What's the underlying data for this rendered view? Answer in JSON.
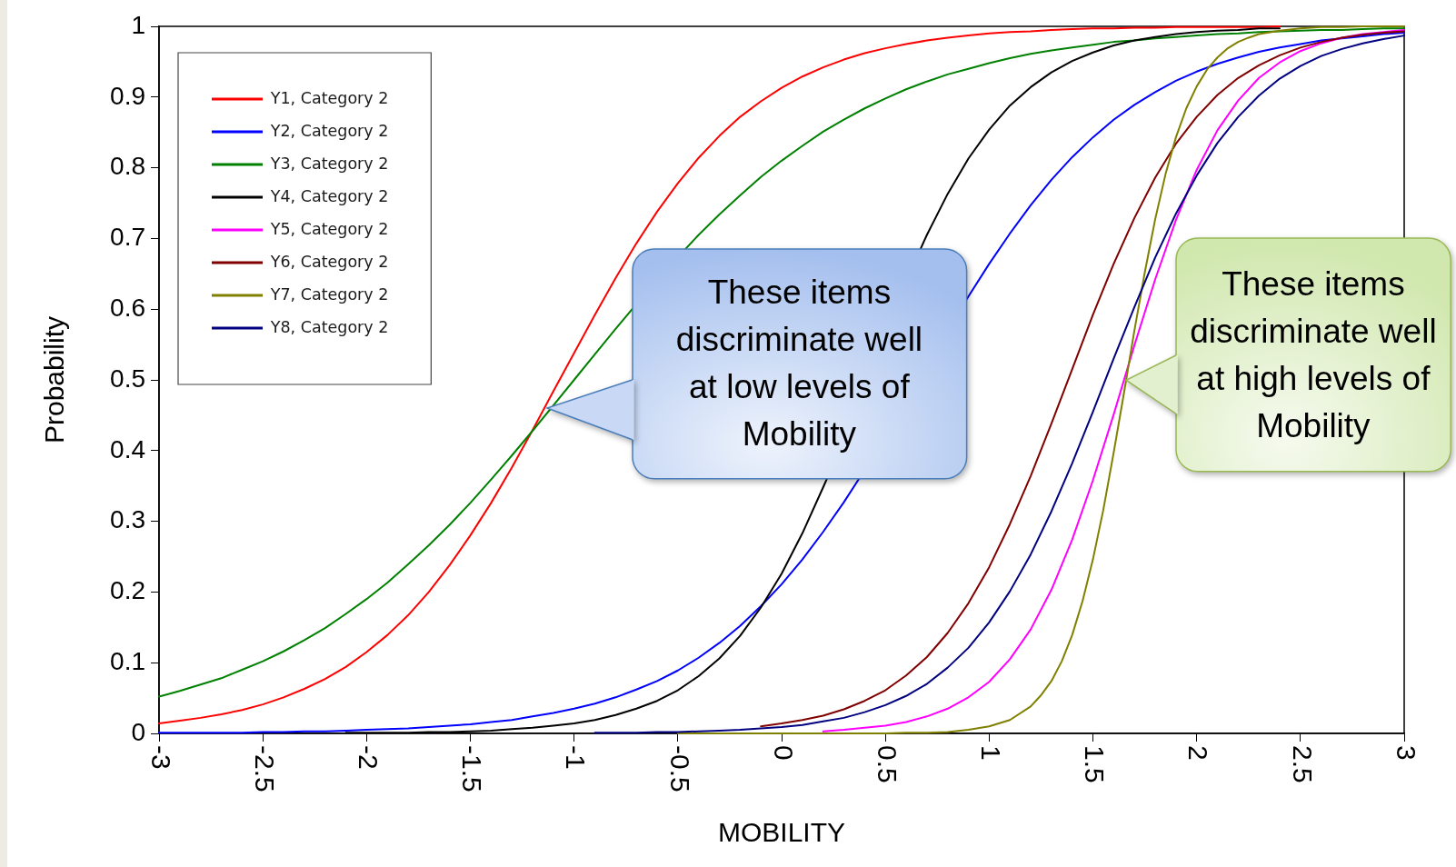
{
  "chart_data": {
    "type": "line",
    "xlabel": "MOBILITY",
    "ylabel": "Probability",
    "xlim": [
      -3,
      3
    ],
    "xticks": [
      -3,
      -2.5,
      -2,
      -1.5,
      -1,
      -0.5,
      0,
      0.5,
      1,
      1.5,
      2,
      2.5,
      3
    ],
    "ylim": [
      0,
      1
    ],
    "yticks": [
      0,
      0.1,
      0.2,
      0.3,
      0.4,
      0.5,
      0.6,
      0.7,
      0.8,
      0.9,
      1
    ],
    "legend": "top left",
    "line_style": "solid",
    "x": [
      -3,
      -2.9,
      -2.8,
      -2.7,
      -2.6,
      -2.5,
      -2.4,
      -2.3,
      -2.2,
      -2.1,
      -2,
      -1.9,
      -1.8,
      -1.7,
      -1.6,
      -1.5,
      -1.4,
      -1.3,
      -1.2,
      -1.1,
      -1,
      -0.9,
      -0.8,
      -0.7,
      -0.6,
      -0.5,
      -0.4,
      -0.3,
      -0.2,
      -0.1,
      0,
      0.1,
      0.2,
      0.3,
      0.4,
      0.5,
      0.6,
      0.7,
      0.8,
      0.9,
      1,
      1.1,
      1.2,
      1.3,
      1.4,
      1.5,
      1.6,
      1.7,
      1.8,
      1.9,
      2,
      2.1,
      2.2,
      2.3,
      2.4,
      2.5,
      2.6,
      2.7,
      2.8,
      2.9,
      3
    ],
    "series": [
      {
        "name": "Y1, Category 2",
        "color": "#ff0000",
        "values": [
          0.014,
          0.018,
          0.022,
          0.027,
          0.033,
          0.041,
          0.051,
          0.063,
          0.077,
          0.094,
          0.115,
          0.139,
          0.167,
          0.2,
          0.238,
          0.28,
          0.326,
          0.376,
          0.429,
          0.484,
          0.538,
          0.592,
          0.644,
          0.693,
          0.738,
          0.778,
          0.814,
          0.845,
          0.872,
          0.894,
          0.913,
          0.929,
          0.942,
          0.953,
          0.962,
          0.969,
          0.975,
          0.98,
          0.984,
          0.987,
          0.99,
          0.992,
          0.993,
          0.995,
          0.996,
          0.997,
          0.997,
          0.998,
          0.998,
          0.999,
          0.999,
          0.999,
          0.999,
          0.999,
          1,
          null,
          null,
          null,
          null,
          null,
          null
        ]
      },
      {
        "name": "Y2, Category 2",
        "color": "#0000ff",
        "x": [
          -3,
          -2.9,
          -2.8,
          -2.7,
          -2.6,
          -2.5,
          -2.4,
          -2.3,
          -2.2,
          -2.1,
          -2,
          -1.9,
          -1.8,
          -1.7,
          -1.6,
          -1.5,
          -1.4,
          -1.3,
          -1.2,
          -1.1,
          -1,
          -0.9,
          -0.8,
          -0.7,
          -0.6,
          -0.5,
          -0.4,
          -0.3,
          -0.2,
          -0.1,
          0,
          0.1,
          0.2,
          0.3,
          0.3723,
          0.6,
          0.89,
          0.9,
          1,
          1.1,
          1.2,
          1.3,
          1.4,
          1.5,
          1.6,
          1.7,
          1.8,
          1.9,
          2,
          2.1,
          2.2,
          2.3,
          2.4,
          2.5,
          2.6,
          2.7,
          2.8,
          2.9,
          3
        ],
        "values": [
          0.001,
          0.001,
          0.001,
          0.001,
          0.001,
          0.002,
          0.002,
          0.003,
          0.003,
          0.004,
          0.005,
          0.006,
          0.007,
          0.009,
          0.011,
          0.013,
          0.016,
          0.019,
          0.024,
          0.029,
          0.035,
          0.042,
          0.051,
          0.062,
          0.074,
          0.089,
          0.107,
          0.128,
          0.152,
          0.18,
          0.211,
          0.246,
          0.285,
          0.327,
          0.36,
          null,
          0.613,
          0.618,
          0.664,
          0.707,
          0.747,
          0.783,
          0.815,
          0.843,
          0.868,
          0.889,
          0.907,
          0.923,
          0.936,
          0.947,
          0.956,
          0.964,
          0.97,
          0.975,
          0.98,
          0.983,
          0.986,
          0.989,
          0.991
        ]
      },
      {
        "name": "Y3, Category 2",
        "color": "#008000",
        "x": [
          -3,
          -2.9,
          -2.8,
          -2.7,
          -2.6,
          -2.5,
          -2.4,
          -2.3,
          -2.2,
          -2.1,
          -2,
          -1.9,
          -1.8,
          -1.7,
          -1.6,
          -1.5,
          -1.4,
          -1.3,
          -1.2,
          -1.1,
          -1,
          -0.9,
          -0.8,
          -0.72,
          -0.6,
          -0.464,
          -0.4,
          -0.3,
          -0.2,
          -0.1,
          0,
          0.1,
          0.2,
          0.3,
          0.4,
          0.5,
          0.6,
          0.7,
          0.8,
          0.9,
          1,
          1.1,
          1.2,
          1.3,
          1.4,
          1.5,
          1.6,
          1.7,
          1.8,
          1.9,
          2,
          2.1,
          2.2,
          2.3,
          2.4,
          2.5,
          2.6,
          2.7,
          2.8,
          2.9,
          3
        ],
        "values": [
          0.052,
          0.06,
          0.069,
          0.078,
          0.09,
          0.102,
          0.116,
          0.132,
          0.149,
          0.169,
          0.19,
          0.213,
          0.239,
          0.266,
          0.295,
          0.326,
          0.359,
          0.393,
          0.428,
          0.464,
          0.5,
          0.536,
          0.572,
          0.6,
          null,
          0.685,
          0.705,
          0.734,
          0.761,
          0.787,
          0.81,
          0.831,
          0.851,
          0.868,
          0.884,
          0.898,
          0.911,
          0.922,
          0.932,
          0.94,
          0.948,
          0.955,
          0.961,
          0.966,
          0.97,
          0.974,
          0.978,
          0.98,
          0.983,
          0.985,
          0.987,
          0.989,
          0.99,
          0.992,
          0.993,
          0.994,
          0.995,
          0.995,
          0.996,
          0.997,
          0.997
        ]
      },
      {
        "name": "Y4, Category 2",
        "color": "#000000",
        "x": [
          -2.1,
          -2,
          -1.9,
          -1.8,
          -1.7,
          -1.6,
          -1.5,
          -1.4,
          -1.3,
          -1.2,
          -1.1,
          -1,
          -0.9,
          -0.8,
          -0.7,
          -0.6,
          -0.5,
          -0.4,
          -0.3,
          -0.2,
          -0.1,
          0,
          0.1,
          0.2,
          0.2182,
          0.45,
          0.669,
          0.7,
          0.8,
          0.9,
          1,
          1.1,
          1.2,
          1.3,
          1.4,
          1.5,
          1.6,
          1.7,
          1.8,
          1.9,
          2,
          2.1,
          2.2,
          2.3,
          2.4
        ],
        "values": [
          0.001,
          0.001,
          0.001,
          0.001,
          0.002,
          0.002,
          0.003,
          0.004,
          0.006,
          0.008,
          0.011,
          0.014,
          0.019,
          0.026,
          0.035,
          0.046,
          0.061,
          0.081,
          0.106,
          0.138,
          0.178,
          0.226,
          0.283,
          0.348,
          0.36,
          null,
          0.685,
          0.705,
          0.763,
          0.813,
          0.854,
          0.888,
          0.914,
          0.935,
          0.951,
          0.963,
          0.973,
          0.98,
          0.985,
          0.989,
          0.992,
          0.994,
          0.995,
          0.997,
          0.997
        ]
      },
      {
        "name": "Y5, Category 2",
        "color": "#ff00ff",
        "values": [
          null,
          null,
          null,
          null,
          null,
          null,
          null,
          null,
          null,
          null,
          null,
          null,
          null,
          null,
          null,
          null,
          null,
          null,
          null,
          null,
          null,
          null,
          null,
          null,
          null,
          null,
          null,
          null,
          null,
          null,
          null,
          null,
          0.003,
          0.005,
          0.008,
          0.011,
          0.016,
          0.024,
          0.035,
          0.051,
          0.073,
          0.105,
          0.147,
          0.203,
          0.274,
          0.358,
          0.451,
          0.549,
          0.642,
          0.726,
          0.797,
          0.853,
          0.895,
          0.927,
          0.949,
          0.965,
          0.976,
          0.984,
          0.989,
          0.992,
          0.995
        ]
      },
      {
        "name": "Y6, Category 2",
        "color": "#800000",
        "values": [
          null,
          null,
          null,
          null,
          null,
          null,
          null,
          null,
          null,
          null,
          null,
          null,
          null,
          null,
          null,
          null,
          null,
          null,
          null,
          null,
          null,
          null,
          null,
          null,
          null,
          null,
          null,
          null,
          null,
          0.01,
          0.014,
          0.019,
          0.025,
          0.034,
          0.046,
          0.061,
          0.082,
          0.108,
          0.142,
          0.184,
          0.235,
          0.296,
          0.364,
          0.438,
          0.515,
          0.592,
          0.664,
          0.729,
          0.786,
          0.834,
          0.872,
          0.903,
          0.927,
          0.945,
          0.959,
          0.97,
          0.978,
          0.984,
          0.988,
          0.991,
          0.993
        ]
      },
      {
        "name": "Y7, Category 2",
        "color": "#808000",
        "x": [
          -0.5,
          0,
          0.5,
          0.6,
          0.7,
          0.8,
          0.9,
          1,
          1.1,
          1.2,
          1.25,
          1.3,
          1.35,
          1.4,
          1.45,
          1.5,
          1.55,
          1.6,
          1.65,
          1.7,
          1.75,
          1.8,
          1.85,
          1.9,
          1.95,
          2,
          2.05,
          2.1,
          2.15,
          2.2,
          2.25,
          2.3,
          2.4,
          2.5,
          2.6,
          2.7,
          2.8,
          2.9,
          3
        ],
        "values": [
          0,
          0,
          0,
          0.001,
          0.001,
          0.002,
          0.005,
          0.01,
          0.019,
          0.038,
          0.054,
          0.074,
          0.102,
          0.139,
          0.187,
          0.246,
          0.316,
          0.397,
          0.482,
          0.57,
          0.652,
          0.727,
          0.791,
          0.843,
          0.884,
          0.915,
          0.939,
          0.956,
          0.969,
          0.978,
          0.984,
          0.989,
          0.994,
          0.997,
          0.999,
          0.999,
          1,
          1,
          1
        ]
      },
      {
        "name": "Y8, Category 2",
        "color": "#000080",
        "values": [
          null,
          null,
          null,
          null,
          null,
          null,
          null,
          null,
          null,
          null,
          null,
          null,
          null,
          null,
          null,
          null,
          null,
          null,
          null,
          null,
          null,
          0.001,
          0.001,
          0.001,
          0.002,
          0.002,
          0.003,
          0.004,
          0.005,
          0.007,
          0.009,
          0.012,
          0.017,
          0.022,
          0.03,
          0.04,
          0.053,
          0.07,
          0.093,
          0.121,
          0.157,
          0.201,
          0.253,
          0.314,
          0.382,
          0.455,
          0.53,
          0.603,
          0.673,
          0.735,
          0.789,
          0.835,
          0.872,
          0.902,
          0.926,
          0.944,
          0.958,
          0.968,
          0.976,
          0.982,
          0.987
        ]
      }
    ],
    "annotations": [
      "These items discriminate well at low levels of Mobility",
      {
        "text": "These items discriminate well at high levels of Mobility",
        "x": 1.66,
        "y": 0.5
      }
    ]
  }
}
